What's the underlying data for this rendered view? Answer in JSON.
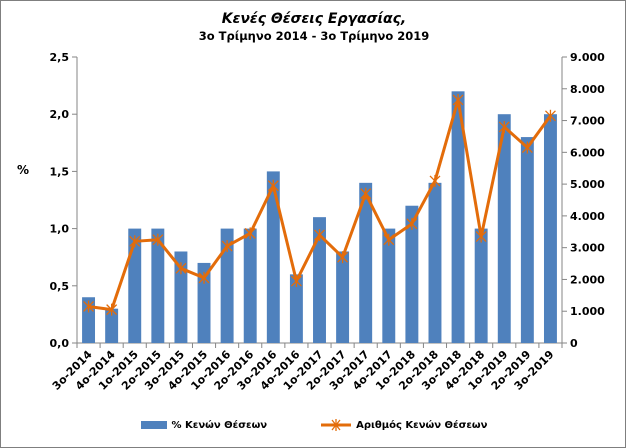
{
  "chart_data": {
    "type": "bar",
    "title": "Κενές Θέσεις Εργασίας,",
    "subtitle": "3ο Τρίμηνο 2014 - 3ο Τρίμηνο 2019",
    "ylabel": "%",
    "ylim": [
      0,
      2.5
    ],
    "y2lim": [
      0,
      9000
    ],
    "grid": false,
    "legend_position": "bottom",
    "categories": [
      "3ο-2014",
      "4ο-2014",
      "1ο-2015",
      "2ο-2015",
      "3ο-2015",
      "4ο-2015",
      "1ο-2016",
      "2ο-2016",
      "3ο-2016",
      "4ο-2016",
      "1ο-2017",
      "2ο-2017",
      "3ο-2017",
      "4ο-2017",
      "1ο-2018",
      "2ο-2018",
      "3ο-2018",
      "4ο-2018",
      "1ο-2019",
      "2ο-2019",
      "3ο-2019"
    ],
    "y_ticks": [
      "0,0",
      "0,5",
      "1,0",
      "1,5",
      "2,0",
      "2,5"
    ],
    "y2_ticks": [
      "0",
      "1.000",
      "2.000",
      "3.000",
      "4.000",
      "5.000",
      "6.000",
      "7.000",
      "8.000",
      "9.000"
    ],
    "series": [
      {
        "name": "% Κενών Θέσεων",
        "type": "bar",
        "axis": "left",
        "color": "#4f81bd",
        "values": [
          0.4,
          0.3,
          1.0,
          1.0,
          0.8,
          0.7,
          1.0,
          1.0,
          1.5,
          0.6,
          1.1,
          0.8,
          1.4,
          1.0,
          1.2,
          1.4,
          2.2,
          1.0,
          2.0,
          1.8,
          2.0
        ]
      },
      {
        "name": "Αριθμός Κενών Θέσεων",
        "type": "line",
        "axis": "right",
        "color": "#e36c0a",
        "values": [
          1150,
          1050,
          3200,
          3250,
          2350,
          2050,
          3050,
          3450,
          4950,
          1950,
          3400,
          2700,
          4700,
          3250,
          3750,
          5100,
          7650,
          3350,
          6800,
          6150,
          7150
        ]
      }
    ]
  }
}
